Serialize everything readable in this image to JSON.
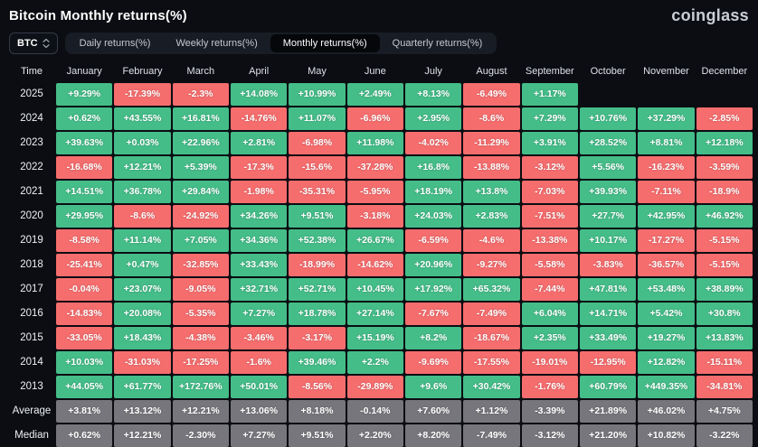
{
  "header": {
    "title": "Bitcoin Monthly returns(%)",
    "logo": "coinglass"
  },
  "controls": {
    "coin_selector": {
      "label": "BTC"
    },
    "tabs": [
      {
        "label": "Daily returns(%)",
        "active": false
      },
      {
        "label": "Weekly returns(%)",
        "active": false
      },
      {
        "label": "Monthly returns(%)",
        "active": true
      },
      {
        "label": "Quarterly returns(%)",
        "active": false
      }
    ]
  },
  "colors": {
    "positive": "#45bd89",
    "negative": "#f66d6e",
    "summary_gray": "#76767c",
    "background": "#0b0d12",
    "active_tab_bg": "#05070b"
  },
  "chart_data": {
    "type": "heatmap",
    "title": "Bitcoin Monthly returns(%)",
    "columns": [
      "Time",
      "January",
      "February",
      "March",
      "April",
      "May",
      "June",
      "July",
      "August",
      "September",
      "October",
      "November",
      "December"
    ],
    "rows": [
      {
        "label": "2025",
        "type": "year",
        "values": [
          "+9.29%",
          "-17.39%",
          "-2.3%",
          "+14.08%",
          "+10.99%",
          "+2.49%",
          "+8.13%",
          "-6.49%",
          "+1.17%",
          "",
          "",
          ""
        ]
      },
      {
        "label": "2024",
        "type": "year",
        "values": [
          "+0.62%",
          "+43.55%",
          "+16.81%",
          "-14.76%",
          "+11.07%",
          "-6.96%",
          "+2.95%",
          "-8.6%",
          "+7.29%",
          "+10.76%",
          "+37.29%",
          "-2.85%"
        ]
      },
      {
        "label": "2023",
        "type": "year",
        "values": [
          "+39.63%",
          "+0.03%",
          "+22.96%",
          "+2.81%",
          "-6.98%",
          "+11.98%",
          "-4.02%",
          "-11.29%",
          "+3.91%",
          "+28.52%",
          "+8.81%",
          "+12.18%"
        ]
      },
      {
        "label": "2022",
        "type": "year",
        "values": [
          "-16.68%",
          "+12.21%",
          "+5.39%",
          "-17.3%",
          "-15.6%",
          "-37.28%",
          "+16.8%",
          "-13.88%",
          "-3.12%",
          "+5.56%",
          "-16.23%",
          "-3.59%"
        ]
      },
      {
        "label": "2021",
        "type": "year",
        "values": [
          "+14.51%",
          "+36.78%",
          "+29.84%",
          "-1.98%",
          "-35.31%",
          "-5.95%",
          "+18.19%",
          "+13.8%",
          "-7.03%",
          "+39.93%",
          "-7.11%",
          "-18.9%"
        ]
      },
      {
        "label": "2020",
        "type": "year",
        "values": [
          "+29.95%",
          "-8.6%",
          "-24.92%",
          "+34.26%",
          "+9.51%",
          "-3.18%",
          "+24.03%",
          "+2.83%",
          "-7.51%",
          "+27.7%",
          "+42.95%",
          "+46.92%"
        ]
      },
      {
        "label": "2019",
        "type": "year",
        "values": [
          "-8.58%",
          "+11.14%",
          "+7.05%",
          "+34.36%",
          "+52.38%",
          "+26.67%",
          "-6.59%",
          "-4.6%",
          "-13.38%",
          "+10.17%",
          "-17.27%",
          "-5.15%"
        ]
      },
      {
        "label": "2018",
        "type": "year",
        "values": [
          "-25.41%",
          "+0.47%",
          "-32.85%",
          "+33.43%",
          "-18.99%",
          "-14.62%",
          "+20.96%",
          "-9.27%",
          "-5.58%",
          "-3.83%",
          "-36.57%",
          "-5.15%"
        ]
      },
      {
        "label": "2017",
        "type": "year",
        "values": [
          "-0.04%",
          "+23.07%",
          "-9.05%",
          "+32.71%",
          "+52.71%",
          "+10.45%",
          "+17.92%",
          "+65.32%",
          "-7.44%",
          "+47.81%",
          "+53.48%",
          "+38.89%"
        ]
      },
      {
        "label": "2016",
        "type": "year",
        "values": [
          "-14.83%",
          "+20.08%",
          "-5.35%",
          "+7.27%",
          "+18.78%",
          "+27.14%",
          "-7.67%",
          "-7.49%",
          "+6.04%",
          "+14.71%",
          "+5.42%",
          "+30.8%"
        ]
      },
      {
        "label": "2015",
        "type": "year",
        "values": [
          "-33.05%",
          "+18.43%",
          "-4.38%",
          "-3.46%",
          "-3.17%",
          "+15.19%",
          "+8.2%",
          "-18.67%",
          "+2.35%",
          "+33.49%",
          "+19.27%",
          "+13.83%"
        ]
      },
      {
        "label": "2014",
        "type": "year",
        "values": [
          "+10.03%",
          "-31.03%",
          "-17.25%",
          "-1.6%",
          "+39.46%",
          "+2.2%",
          "-9.69%",
          "-17.55%",
          "-19.01%",
          "-12.95%",
          "+12.82%",
          "-15.11%"
        ]
      },
      {
        "label": "2013",
        "type": "year",
        "values": [
          "+44.05%",
          "+61.77%",
          "+172.76%",
          "+50.01%",
          "-8.56%",
          "-29.89%",
          "+9.6%",
          "+30.42%",
          "-1.76%",
          "+60.79%",
          "+449.35%",
          "-34.81%"
        ]
      },
      {
        "label": "Average",
        "type": "summary",
        "values": [
          "+3.81%",
          "+13.12%",
          "+12.21%",
          "+13.06%",
          "+8.18%",
          "-0.14%",
          "+7.60%",
          "+1.12%",
          "-3.39%",
          "+21.89%",
          "+46.02%",
          "+4.75%"
        ]
      },
      {
        "label": "Median",
        "type": "summary",
        "values": [
          "+0.62%",
          "+12.21%",
          "-2.30%",
          "+7.27%",
          "+9.51%",
          "+2.20%",
          "+8.20%",
          "-7.49%",
          "-3.12%",
          "+21.20%",
          "+10.82%",
          "-3.22%"
        ]
      }
    ]
  }
}
